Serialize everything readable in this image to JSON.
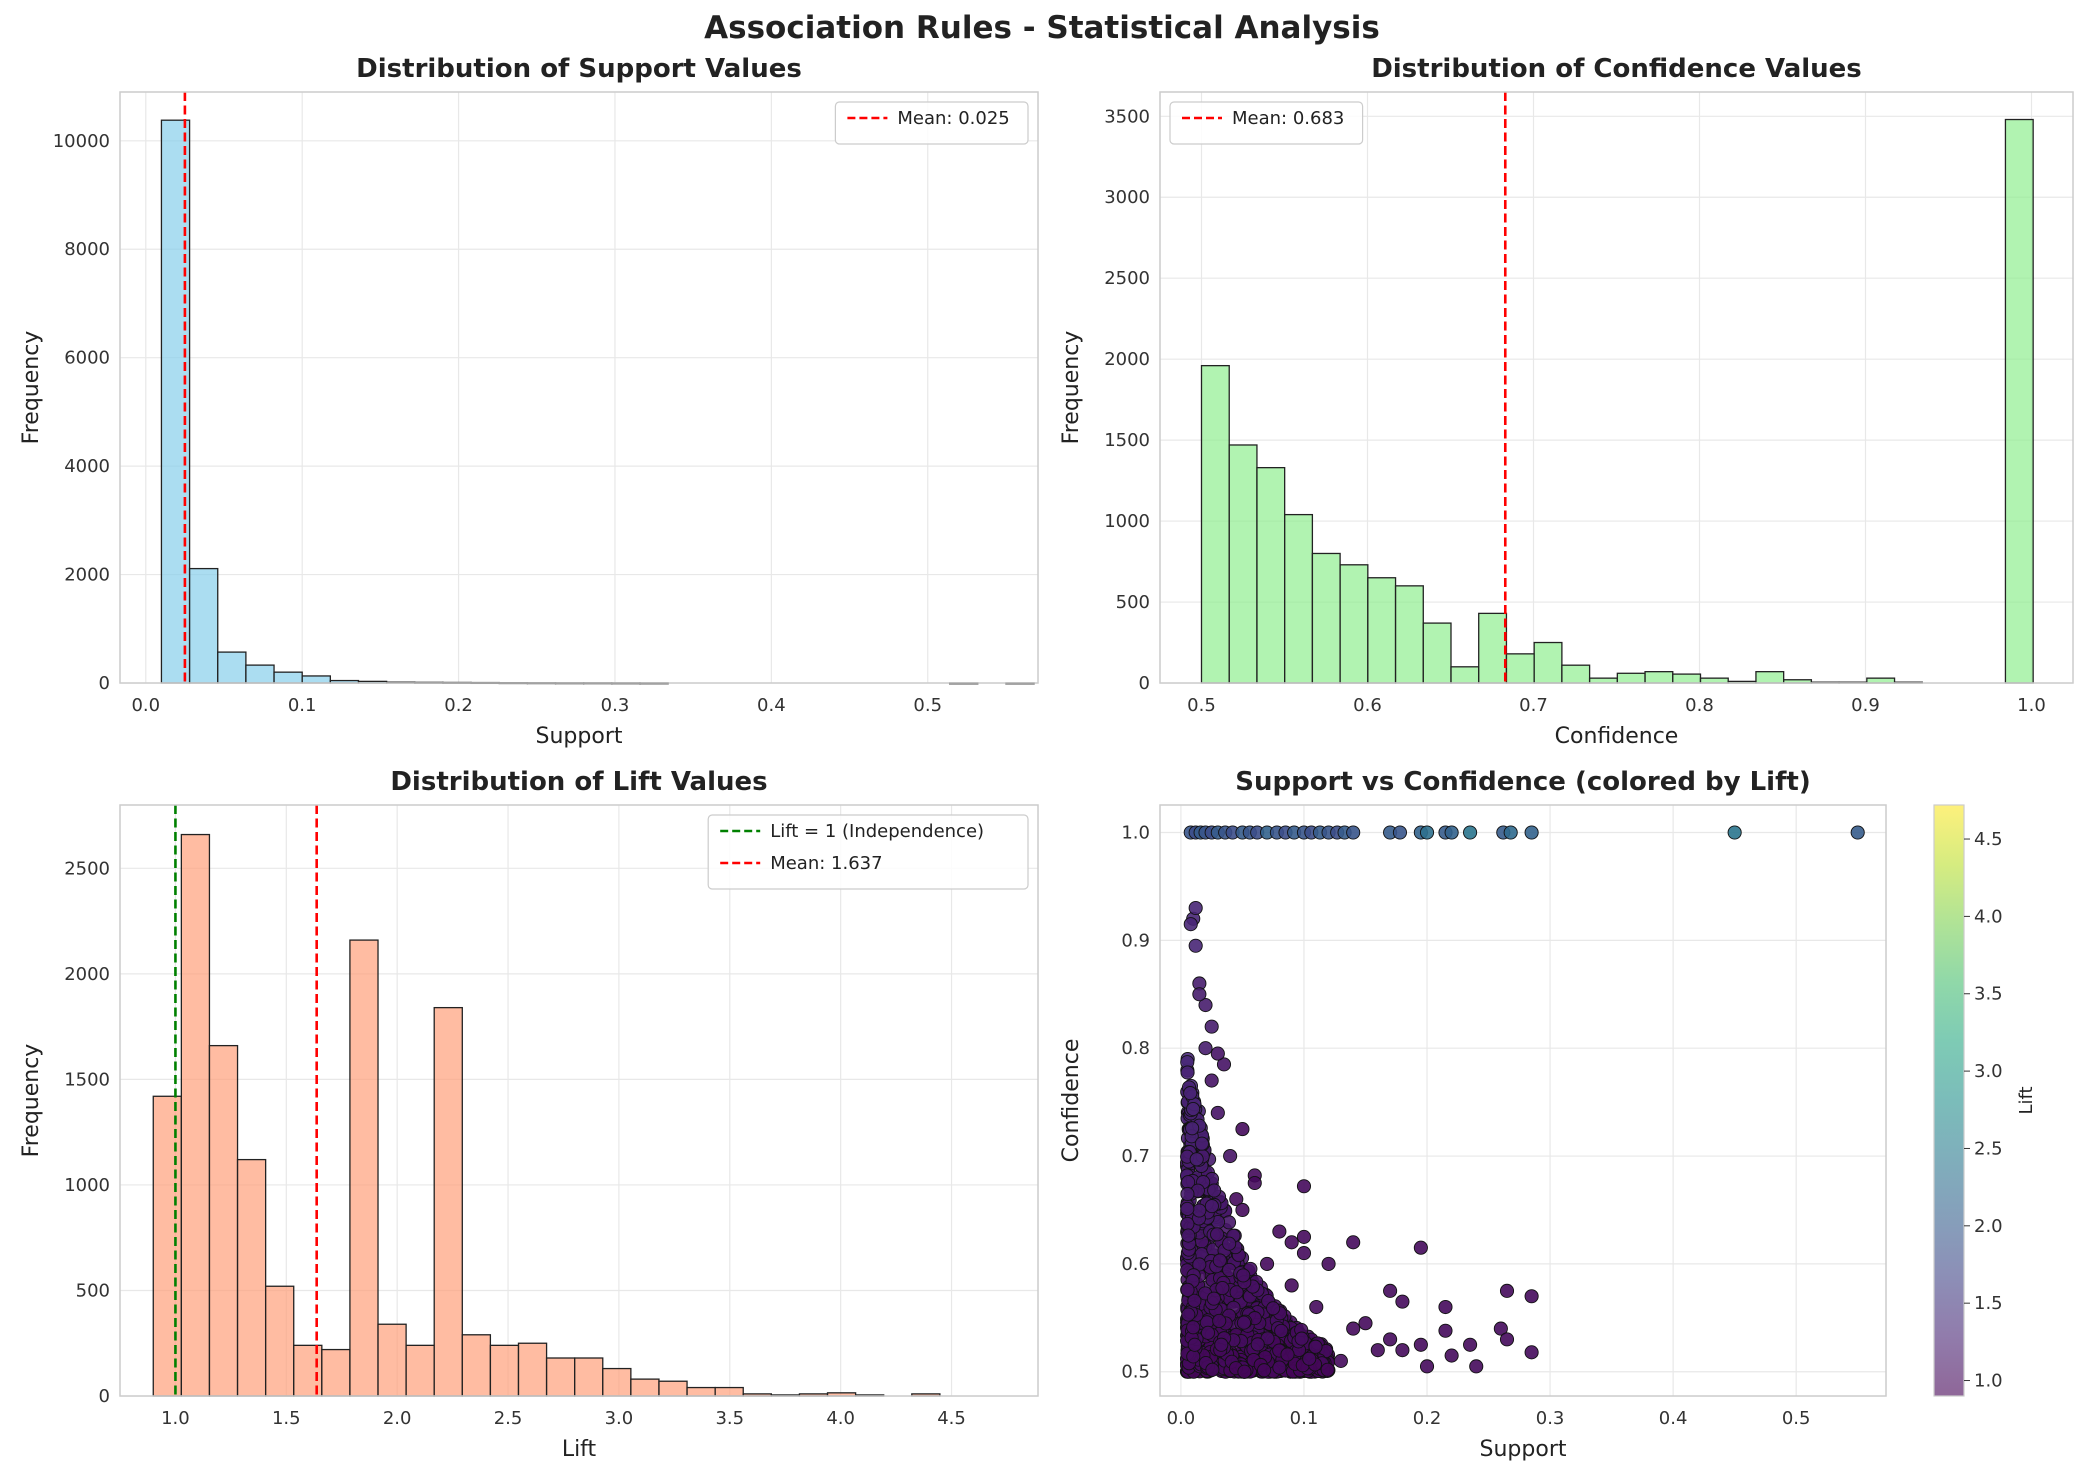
{
  "figure": {
    "title": "Association Rules - Statistical Analysis"
  },
  "colors": {
    "support_bar": "#87CEEB",
    "confidence_bar": "#90EE90",
    "lift_bar": "#FFA07A",
    "mean_line": "#ff0000",
    "independence_line": "#008000",
    "grid": "#e8e8e8",
    "frame": "#cccccc"
  },
  "chart_data": [
    {
      "id": "support",
      "type": "bar",
      "title": "Distribution of Support Values",
      "xlabel": "Support",
      "ylabel": "Frequency",
      "xlim": [
        -0.0165,
        0.5705
      ],
      "ylim": [
        0,
        10900
      ],
      "xticks": [
        0.0,
        0.1,
        0.2,
        0.3,
        0.4,
        0.5
      ],
      "xtick_labels": [
        "0.0",
        "0.1",
        "0.2",
        "0.3",
        "0.4",
        "0.5"
      ],
      "yticks": [
        0,
        2000,
        4000,
        6000,
        8000,
        10000
      ],
      "ytick_labels": [
        "0",
        "2000",
        "4000",
        "6000",
        "8000",
        "10000"
      ],
      "bin_start": 0.01,
      "bin_width": 0.018,
      "values": [
        10380,
        2110,
        570,
        330,
        200,
        130,
        45,
        30,
        15,
        12,
        10,
        8,
        6,
        5,
        4,
        4,
        3,
        2,
        0,
        0,
        0,
        0,
        0,
        0,
        0,
        0,
        0,
        0,
        1,
        0,
        1
      ],
      "vlines": [
        {
          "x": 0.025,
          "label": "Mean: 0.025",
          "color": "#ff0000"
        }
      ],
      "legend": "upper right"
    },
    {
      "id": "confidence",
      "type": "bar",
      "title": "Distribution of Confidence Values",
      "xlabel": "Confidence",
      "ylabel": "Frequency",
      "xlim": [
        0.475,
        1.025
      ],
      "ylim": [
        0,
        3650
      ],
      "xticks": [
        0.5,
        0.6,
        0.7,
        0.8,
        0.9,
        1.0
      ],
      "xtick_labels": [
        "0.5",
        "0.6",
        "0.7",
        "0.8",
        "0.9",
        "1.0"
      ],
      "yticks": [
        0,
        500,
        1000,
        1500,
        2000,
        2500,
        3000,
        3500
      ],
      "ytick_labels": [
        "0",
        "500",
        "1000",
        "1500",
        "2000",
        "2500",
        "3000",
        "3500"
      ],
      "bin_start": 0.5,
      "bin_width": 0.0167,
      "values": [
        1960,
        1470,
        1330,
        1040,
        800,
        730,
        650,
        600,
        370,
        100,
        430,
        180,
        250,
        110,
        30,
        60,
        70,
        55,
        30,
        10,
        70,
        20,
        5,
        5,
        30,
        5,
        0,
        0,
        0,
        3480
      ],
      "vlines": [
        {
          "x": 0.683,
          "label": "Mean: 0.683",
          "color": "#ff0000"
        }
      ],
      "legend": "upper left"
    },
    {
      "id": "lift",
      "type": "bar",
      "title": "Distribution of Lift Values",
      "xlabel": "Lift",
      "ylabel": "Frequency",
      "xlim": [
        0.75,
        4.89
      ],
      "ylim": [
        0,
        2800
      ],
      "xticks": [
        1.0,
        1.5,
        2.0,
        2.5,
        3.0,
        3.5,
        4.0,
        4.5
      ],
      "xtick_labels": [
        "1.0",
        "1.5",
        "2.0",
        "2.5",
        "3.0",
        "3.5",
        "4.0",
        "4.5"
      ],
      "yticks": [
        0,
        500,
        1000,
        1500,
        2000,
        2500
      ],
      "ytick_labels": [
        "0",
        "500",
        "1000",
        "1500",
        "2000",
        "2500"
      ],
      "bin_start": 0.9,
      "bin_width": 0.1267,
      "values": [
        1420,
        2660,
        1660,
        1120,
        520,
        240,
        220,
        2160,
        340,
        240,
        1840,
        290,
        240,
        250,
        180,
        180,
        130,
        80,
        70,
        40,
        40,
        10,
        5,
        10,
        15,
        5,
        0,
        10,
        0,
        0
      ],
      "vlines": [
        {
          "x": 1.0,
          "label": "Lift = 1 (Independence)",
          "color": "#008000"
        },
        {
          "x": 1.637,
          "label": "Mean: 1.637",
          "color": "#ff0000"
        }
      ],
      "legend": "upper right"
    },
    {
      "id": "scatter",
      "type": "scatter",
      "title": "Support vs Confidence (colored by Lift)",
      "xlabel": "Support",
      "ylabel": "Confidence",
      "xlim": [
        -0.017,
        0.573
      ],
      "ylim": [
        0.4775,
        1.0255
      ],
      "xticks": [
        0.0,
        0.1,
        0.2,
        0.3,
        0.4,
        0.5
      ],
      "xtick_labels": [
        "0.0",
        "0.1",
        "0.2",
        "0.3",
        "0.4",
        "0.5"
      ],
      "yticks": [
        0.5,
        0.6,
        0.7,
        0.8,
        0.9,
        1.0
      ],
      "ytick_labels": [
        "0.5",
        "0.6",
        "0.7",
        "0.8",
        "0.9",
        "1.0"
      ],
      "colorbar": {
        "label": "Lift",
        "range": [
          0.9,
          4.72
        ],
        "ticks": [
          1.0,
          1.5,
          2.0,
          2.5,
          3.0,
          3.5,
          4.0,
          4.5
        ],
        "tick_labels": [
          "1.0",
          "1.5",
          "2.0",
          "2.5",
          "3.0",
          "3.5",
          "4.0",
          "4.5"
        ],
        "colormap": "viridis"
      },
      "points_note_top": [
        [
          0.008,
          1.0,
          1.9
        ],
        [
          0.012,
          1.0,
          1.8
        ],
        [
          0.016,
          1.0,
          2.0
        ],
        [
          0.02,
          1.0,
          1.9
        ],
        [
          0.025,
          1.0,
          1.8
        ],
        [
          0.03,
          1.0,
          2.0
        ],
        [
          0.036,
          1.0,
          1.9
        ],
        [
          0.042,
          1.0,
          1.8
        ],
        [
          0.05,
          1.0,
          2.0
        ],
        [
          0.056,
          1.0,
          1.9
        ],
        [
          0.062,
          1.0,
          1.8
        ],
        [
          0.07,
          1.0,
          2.1
        ],
        [
          0.078,
          1.0,
          1.9
        ],
        [
          0.085,
          1.0,
          1.8
        ],
        [
          0.092,
          1.0,
          2.0
        ],
        [
          0.1,
          1.0,
          1.9
        ],
        [
          0.106,
          1.0,
          1.8
        ],
        [
          0.113,
          1.0,
          2.0
        ],
        [
          0.12,
          1.0,
          1.9
        ],
        [
          0.127,
          1.0,
          1.8
        ],
        [
          0.133,
          1.0,
          2.0
        ],
        [
          0.14,
          1.0,
          1.9
        ],
        [
          0.17,
          1.0,
          2.0
        ],
        [
          0.178,
          1.0,
          1.9
        ],
        [
          0.195,
          1.0,
          2.1
        ],
        [
          0.2,
          1.0,
          2.3
        ],
        [
          0.215,
          1.0,
          2.0
        ],
        [
          0.22,
          1.0,
          2.1
        ],
        [
          0.235,
          1.0,
          2.4
        ],
        [
          0.262,
          1.0,
          2.0
        ],
        [
          0.268,
          1.0,
          2.2
        ],
        [
          0.285,
          1.0,
          2.1
        ],
        [
          0.45,
          1.0,
          2.4
        ],
        [
          0.55,
          1.0,
          2.0
        ]
      ],
      "points_sparse": [
        [
          0.14,
          0.62,
          1.0
        ],
        [
          0.195,
          0.615,
          1.0
        ],
        [
          0.1,
          0.672,
          1.0
        ],
        [
          0.05,
          0.725,
          1.0
        ],
        [
          0.06,
          0.682,
          1.0
        ],
        [
          0.06,
          0.675,
          1.0
        ],
        [
          0.08,
          0.63,
          1.0
        ],
        [
          0.1,
          0.625,
          1.0
        ],
        [
          0.12,
          0.6,
          1.0
        ],
        [
          0.17,
          0.575,
          1.0
        ],
        [
          0.18,
          0.565,
          1.0
        ],
        [
          0.215,
          0.56,
          1.0
        ],
        [
          0.265,
          0.575,
          1.0
        ],
        [
          0.285,
          0.57,
          1.0
        ],
        [
          0.26,
          0.54,
          1.0
        ],
        [
          0.265,
          0.53,
          1.0
        ],
        [
          0.235,
          0.525,
          1.0
        ],
        [
          0.285,
          0.518,
          1.0
        ],
        [
          0.215,
          0.538,
          1.0
        ],
        [
          0.195,
          0.525,
          1.0
        ],
        [
          0.18,
          0.52,
          1.0
        ],
        [
          0.16,
          0.52,
          1.0
        ],
        [
          0.14,
          0.54,
          1.0
        ],
        [
          0.13,
          0.51,
          1.0
        ],
        [
          0.2,
          0.505,
          1.0
        ],
        [
          0.24,
          0.505,
          1.0
        ],
        [
          0.17,
          0.53,
          1.0
        ],
        [
          0.15,
          0.545,
          1.0
        ],
        [
          0.22,
          0.515,
          1.0
        ],
        [
          0.11,
          0.56,
          1.0
        ],
        [
          0.09,
          0.58,
          1.0
        ],
        [
          0.07,
          0.6,
          1.0
        ],
        [
          0.035,
          0.785,
          1.1
        ],
        [
          0.03,
          0.795,
          1.1
        ],
        [
          0.025,
          0.82,
          1.2
        ],
        [
          0.02,
          0.84,
          1.2
        ],
        [
          0.015,
          0.86,
          1.2
        ],
        [
          0.012,
          0.895,
          1.3
        ],
        [
          0.01,
          0.92,
          1.3
        ],
        [
          0.012,
          0.93,
          1.3
        ],
        [
          0.008,
          0.915,
          1.3
        ],
        [
          0.015,
          0.85,
          1.2
        ],
        [
          0.02,
          0.8,
          1.2
        ],
        [
          0.025,
          0.77,
          1.1
        ],
        [
          0.03,
          0.74,
          1.1
        ],
        [
          0.04,
          0.7,
          1.1
        ],
        [
          0.045,
          0.66,
          1.0
        ],
        [
          0.05,
          0.65,
          1.0
        ],
        [
          0.09,
          0.62,
          1.0
        ],
        [
          0.1,
          0.61,
          1.0
        ]
      ],
      "cluster": {
        "x_min": 0.005,
        "x_max": 0.12,
        "y_min": 0.5,
        "y_max": 0.8,
        "count": 1100
      }
    }
  ]
}
